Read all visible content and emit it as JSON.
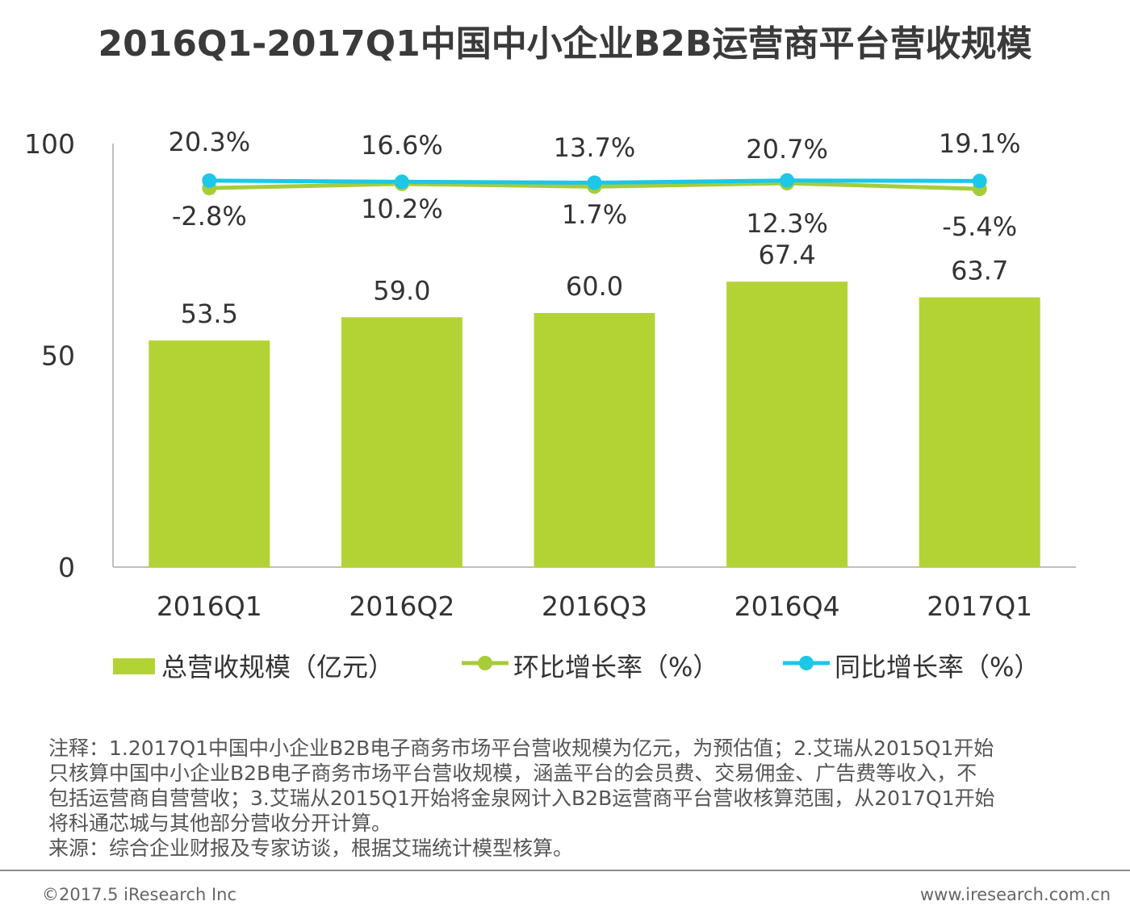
{
  "chart_data": {
    "type": "bar",
    "title": "2016Q1-2017Q1中国中小企业B2B运营商平台营收规模",
    "categories": [
      "2016Q1",
      "2016Q2",
      "2016Q3",
      "2016Q4",
      "2017Q1"
    ],
    "y_ticks": [
      "0",
      "50",
      "100"
    ],
    "ylim": [
      0,
      100
    ],
    "bar_series": {
      "name": "总营收规模（亿元）",
      "values": [
        53.5,
        59.0,
        60.0,
        67.4,
        63.7
      ],
      "labels": [
        "53.5",
        "59.0",
        "60.0",
        "67.4",
        "63.7"
      ]
    },
    "line_series": [
      {
        "name": "环比增长率（%）",
        "values": [
          -2.8,
          10.2,
          1.7,
          12.3,
          -5.4
        ],
        "labels": [
          "-2.8%",
          "10.2%",
          "1.7%",
          "12.3%",
          "-5.4%"
        ]
      },
      {
        "name": "同比增长率（%）",
        "values": [
          20.3,
          16.6,
          13.7,
          20.7,
          19.1
        ],
        "labels": [
          "20.3%",
          "16.6%",
          "13.7%",
          "20.7%",
          "19.1%"
        ]
      }
    ],
    "legend": "bottom",
    "grid": false,
    "colors": {
      "bar": "#b3d334",
      "qoq": "#a6cc3a",
      "yoy": "#1cc7e8",
      "axis": "#bfbfbf"
    }
  },
  "notes": {
    "line1": "注释：1.2017Q1中国中小企业B2B电子商务市场平台营收规模为亿元，为预估值；2.艾瑞从2015Q1开始",
    "line2": "只核算中国中小企业B2B电子商务市场平台营收规模，涵盖平台的会员费、交易佣金、广告费等收入，不",
    "line3": "包括运营商自营营收；3.艾瑞从2015Q1开始将金泉网计入B2B运营商平台营收核算范围，从2017Q1开始",
    "line4": "将科通芯城与其他部分营收分开计算。",
    "source": "来源：综合企业财报及专家访谈，根据艾瑞统计模型核算。"
  },
  "footer": {
    "copyright": "©2017.5 iResearch Inc",
    "website": "www.iresearch.com.cn"
  }
}
